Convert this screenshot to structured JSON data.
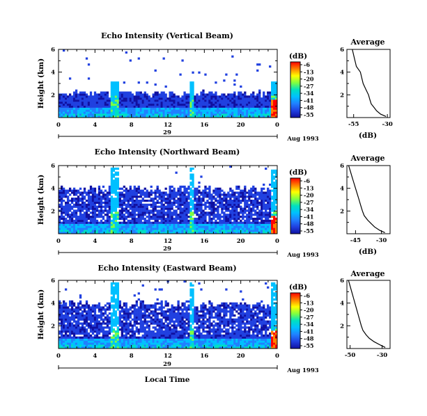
{
  "colorbar": {
    "unit_label": "(dB)",
    "labels": [
      "-6",
      "-13",
      "-20",
      "-27",
      "-34",
      "-41",
      "-48",
      "-55"
    ],
    "colors": [
      "#ff0000",
      "#ff8000",
      "#ffff00",
      "#80ff40",
      "#00e0c0",
      "#00c0ff",
      "#2080ff",
      "#2040e0",
      "#1010a0"
    ]
  },
  "chart_data": [
    {
      "type": "heatmap",
      "title": "Echo Intensity (Vertical Beam)",
      "ylabel": "Height (km)",
      "xticks": [
        "0",
        "4",
        "8",
        "12",
        "16",
        "20",
        "0"
      ],
      "yticks": [
        "2",
        "4",
        "6"
      ],
      "date_day": "29",
      "date_label": "Aug 1993",
      "xlim": [
        0,
        24
      ],
      "ylim": [
        0,
        6
      ]
    },
    {
      "type": "heatmap",
      "title": "Echo Intensity (Northward Beam)",
      "ylabel": "Height (km)",
      "xticks": [
        "0",
        "4",
        "8",
        "12",
        "16",
        "20",
        "0"
      ],
      "yticks": [
        "2",
        "4",
        "6"
      ],
      "date_day": "29",
      "date_label": "Aug 1993",
      "xlim": [
        0,
        24
      ],
      "ylim": [
        0,
        6
      ]
    },
    {
      "type": "heatmap",
      "title": "Echo Intensity (Eastward Beam)",
      "ylabel": "Height (km)",
      "xticks": [
        "0",
        "4",
        "8",
        "12",
        "16",
        "20",
        "0"
      ],
      "yticks": [
        "2",
        "4",
        "6"
      ],
      "date_day": "29",
      "date_label": "Aug 1993",
      "xlabel": "Local Time",
      "xlim": [
        0,
        24
      ],
      "ylim": [
        0,
        6
      ]
    },
    {
      "type": "line",
      "title": "Average",
      "xlabel": "(dB)",
      "xticks": [
        "-55",
        "-30"
      ],
      "yticks": [
        "2",
        "4",
        "6"
      ],
      "xlim": [
        -60,
        -28
      ],
      "ylim": [
        0,
        6
      ],
      "x": [
        -56,
        -55,
        -54,
        -53,
        -50,
        -49,
        -48,
        -46,
        -44,
        -43,
        -42,
        -40,
        -38,
        -35,
        -31
      ],
      "y": [
        6.0,
        5.5,
        5.0,
        4.5,
        4.0,
        3.5,
        3.0,
        2.5,
        2.0,
        1.6,
        1.2,
        0.9,
        0.6,
        0.3,
        0.1
      ]
    },
    {
      "type": "line",
      "title": "Average",
      "xlabel": "(dB)",
      "xticks": [
        "-45",
        "-30"
      ],
      "yticks": [
        "2",
        "4",
        "6"
      ],
      "xlim": [
        -50,
        -25
      ],
      "ylim": [
        0,
        6
      ],
      "x": [
        -49,
        -48,
        -47,
        -46,
        -45,
        -44,
        -43,
        -42,
        -41,
        -40,
        -38,
        -36,
        -34,
        -31,
        -28
      ],
      "y": [
        6.0,
        5.5,
        5.0,
        4.5,
        4.0,
        3.5,
        3.0,
        2.5,
        2.0,
        1.6,
        1.2,
        0.9,
        0.6,
        0.3,
        0.1
      ]
    },
    {
      "type": "line",
      "title": "Average",
      "xlabel": "(dB)",
      "xticks": [
        "-50",
        "-30"
      ],
      "yticks": [
        "2",
        "4",
        "6"
      ],
      "xlim": [
        -52,
        -25
      ],
      "ylim": [
        0,
        6
      ],
      "x": [
        -51,
        -50,
        -49,
        -48,
        -47,
        -46,
        -45,
        -44,
        -43,
        -42,
        -40,
        -38,
        -35,
        -31,
        -28
      ],
      "y": [
        6.0,
        5.5,
        5.0,
        4.5,
        4.0,
        3.5,
        3.0,
        2.5,
        2.0,
        1.6,
        1.2,
        0.9,
        0.6,
        0.3,
        0.1
      ]
    }
  ]
}
